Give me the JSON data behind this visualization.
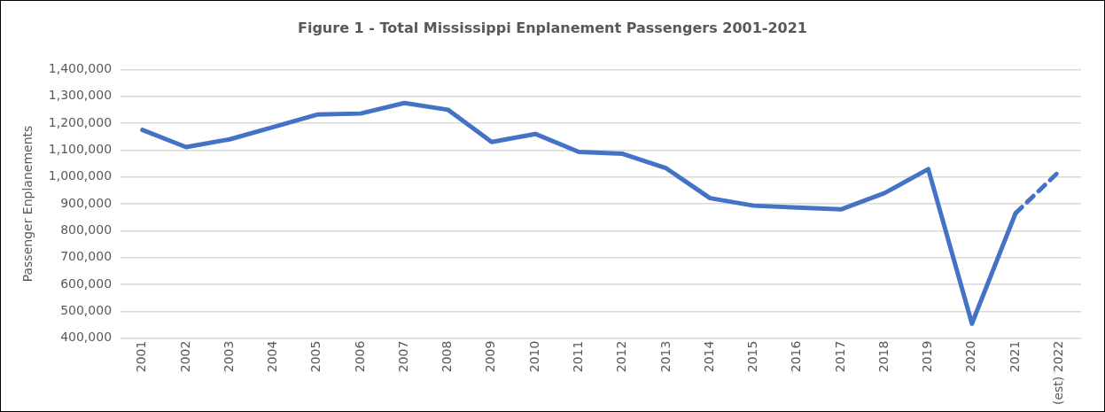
{
  "chart_data": {
    "type": "line",
    "title": "Figure 1 - Total Mississippi Enplanement Passengers 2001-2021",
    "ylabel": "Passenger Enplanements",
    "categories": [
      "2001",
      "2002",
      "2003",
      "2004",
      "2005",
      "2006",
      "2007",
      "2008",
      "2009",
      "2010",
      "2011",
      "2012",
      "2013",
      "2014",
      "2015",
      "2016",
      "2017",
      "2018",
      "2019",
      "2020",
      "2021",
      "(est) 2022"
    ],
    "series": [
      {
        "color": "#4472c4",
        "line_style": "solid",
        "values": [
          1175000,
          1111000,
          1140000,
          1186000,
          1232000,
          1236000,
          1275000,
          1250000,
          1130000,
          1160000,
          1093000,
          1086000,
          1032000,
          921000,
          893000,
          886000,
          879000,
          940000,
          1029000,
          454000,
          865000,
          null
        ]
      },
      {
        "color": "#4472c4",
        "line_style": "dashed",
        "values": [
          null,
          null,
          null,
          null,
          null,
          null,
          null,
          null,
          null,
          null,
          null,
          null,
          null,
          null,
          null,
          null,
          null,
          null,
          null,
          null,
          865000,
          1021000
        ]
      }
    ],
    "ylim": [
      400000,
      1400000
    ],
    "yticks": [
      {
        "value": 400000,
        "label": "400,000"
      },
      {
        "value": 500000,
        "label": "500,000"
      },
      {
        "value": 600000,
        "label": "600,000"
      },
      {
        "value": 700000,
        "label": "700,000"
      },
      {
        "value": 800000,
        "label": "800,000"
      },
      {
        "value": 900000,
        "label": "900,000"
      },
      {
        "value": 1000000,
        "label": "1,000,000"
      },
      {
        "value": 1100000,
        "label": "1,100,000"
      },
      {
        "value": 1200000,
        "label": "1,200,000"
      },
      {
        "value": 1300000,
        "label": "1,300,000"
      },
      {
        "value": 1400000,
        "label": "1,400,000"
      }
    ],
    "grid": "y",
    "legend": false,
    "marker": "none"
  }
}
